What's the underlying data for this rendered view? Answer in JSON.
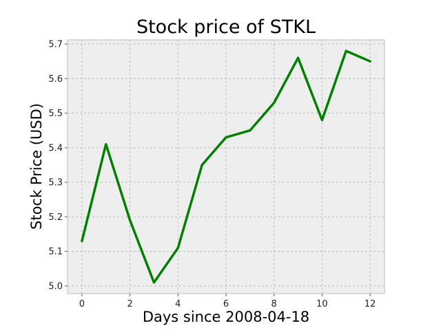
{
  "chart_data": {
    "type": "line",
    "title": "Stock price of STKL",
    "xlabel": "Days since 2008-04-18",
    "ylabel": "Stock Price (USD)",
    "x": [
      0,
      1,
      2,
      3,
      4,
      5,
      6,
      7,
      8,
      9,
      10,
      11,
      12
    ],
    "series": [
      {
        "values": [
          5.13,
          5.41,
          5.19,
          5.01,
          5.11,
          5.35,
          5.43,
          5.45,
          5.53,
          5.66,
          5.48,
          5.68,
          5.65
        ]
      }
    ],
    "xlim": [
      -0.6,
      12.6
    ],
    "ylim": [
      4.978,
      5.712
    ],
    "xticks": [
      0,
      2,
      4,
      6,
      8,
      10,
      12
    ],
    "xtick_labels": [
      "0",
      "2",
      "4",
      "6",
      "8",
      "10",
      "12"
    ],
    "yticks": [
      5.0,
      5.1,
      5.2,
      5.3,
      5.4,
      5.5,
      5.6,
      5.7
    ],
    "ytick_labels": [
      "5.0",
      "5.1",
      "5.2",
      "5.3",
      "5.4",
      "5.5",
      "5.6",
      "5.7"
    ],
    "grid": true,
    "legend": "none",
    "colors": {
      "line": "#008000",
      "plot_background": "#eeeeee",
      "grid": "#b0b0b0",
      "frame": "#bcbcbc"
    }
  }
}
